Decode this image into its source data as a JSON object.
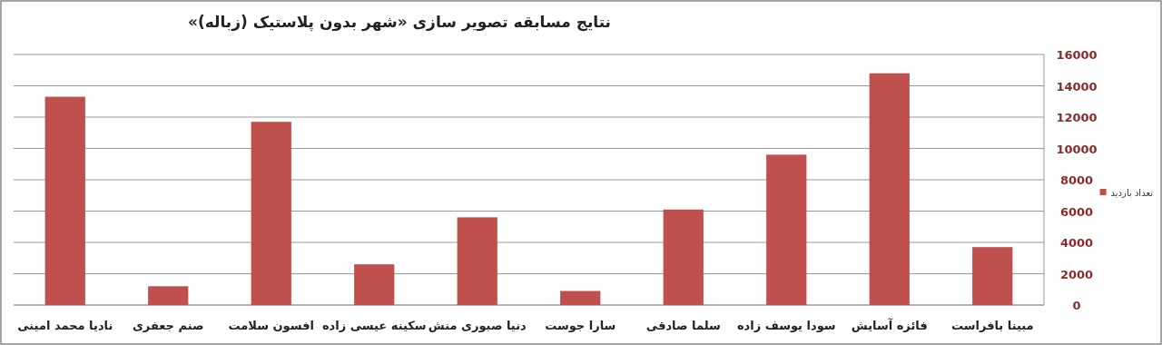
{
  "chart_data": {
    "type": "bar",
    "title": "نتایج مسابقه تصویر سازی «شهر بدون پلاستیک (زباله)»",
    "categories": [
      "نادیا محمد امینی",
      "صنم جعفری",
      "افسون سلامت",
      "سکینه عیسی زاده",
      "دنیا صبوری منش",
      "سارا جوست",
      "سلما صادقی",
      "سودا یوسف زاده",
      "فائزه آسایش",
      "مبینا بافراست"
    ],
    "series": [
      {
        "name": "تعداد بازدید",
        "color": "#c0504d",
        "values": [
          13300,
          1200,
          11700,
          2600,
          5600,
          900,
          6100,
          9600,
          14800,
          3700
        ]
      }
    ],
    "ylim": [
      0,
      16000
    ],
    "yticks": [
      0,
      2000,
      4000,
      6000,
      8000,
      10000,
      12000,
      14000,
      16000
    ],
    "grid": "y",
    "legend": "right"
  }
}
